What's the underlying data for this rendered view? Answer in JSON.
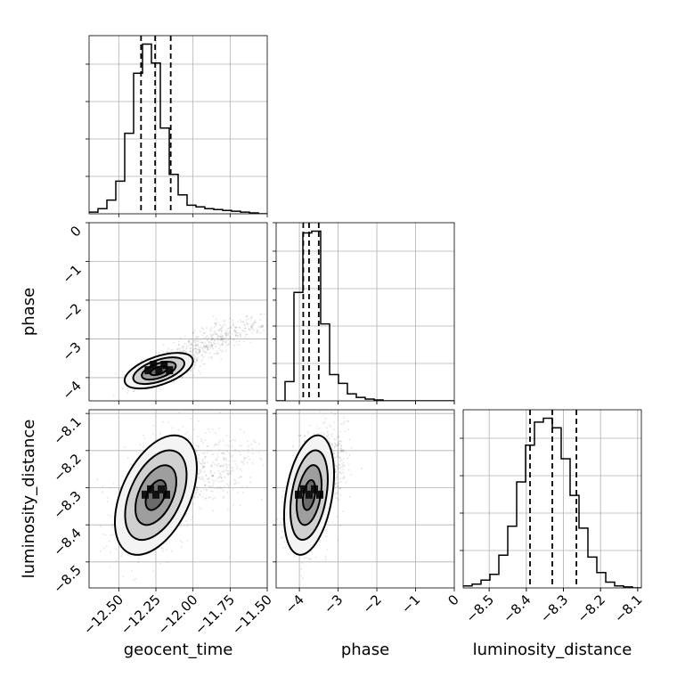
{
  "chart_data": {
    "type": "corner",
    "parameters": [
      {
        "name": "geocent_time",
        "label": "geocent_time",
        "range": [
          -12.7,
          -11.5
        ],
        "ticks": [
          -12.5,
          -12.25,
          -12.0,
          -11.75,
          -11.5
        ],
        "tick_labels": [
          "−12.50",
          "−12.25",
          "−12.00",
          "−11.75",
          "−11.50"
        ]
      },
      {
        "name": "phase",
        "label": "phase",
        "range": [
          -4.6,
          0.0
        ],
        "ticks": [
          -4,
          -3,
          -2,
          -1,
          0
        ],
        "tick_labels": [
          "−4",
          "−3",
          "−2",
          "−1",
          "0"
        ]
      },
      {
        "name": "luminosity_distance",
        "label": "luminosity_distance",
        "range": [
          -8.57,
          -8.09
        ],
        "ticks": [
          -8.5,
          -8.4,
          -8.3,
          -8.2,
          -8.1
        ],
        "tick_labels": [
          "−8.5",
          "−8.4",
          "−8.3",
          "−8.2",
          "−8.1"
        ]
      }
    ],
    "histograms": [
      {
        "param": "geocent_time",
        "bin_start": -12.7,
        "bin_width": 0.06,
        "counts": [
          0.01,
          0.03,
          0.08,
          0.19,
          0.47,
          0.82,
          0.99,
          0.88,
          0.5,
          0.23,
          0.11,
          0.05,
          0.04,
          0.03,
          0.025,
          0.02,
          0.015,
          0.01,
          0.005,
          0.0
        ],
        "quantiles": [
          -12.35,
          -12.255,
          -12.15
        ]
      },
      {
        "param": "phase",
        "bin_start": -4.6,
        "bin_width": 0.23,
        "counts": [
          0.0,
          0.11,
          0.62,
          0.96,
          0.97,
          0.44,
          0.15,
          0.1,
          0.04,
          0.02,
          0.01,
          0.005,
          0.0,
          0.0,
          0.0,
          0.0,
          0.0,
          0.0,
          0.0,
          0.0
        ],
        "quantiles": [
          -3.9,
          -3.75,
          -3.5
        ]
      },
      {
        "param": "luminosity_distance",
        "bin_start": -8.57,
        "bin_width": 0.024,
        "counts": [
          0.01,
          0.02,
          0.04,
          0.07,
          0.17,
          0.32,
          0.55,
          0.74,
          0.86,
          0.88,
          0.83,
          0.67,
          0.48,
          0.31,
          0.16,
          0.08,
          0.03,
          0.01,
          0.005,
          0.0
        ],
        "quantiles": [
          -8.39,
          -8.33,
          -8.265
        ]
      }
    ],
    "pairs": [
      {
        "x": "geocent_time",
        "y": "phase",
        "center": [
          -12.23,
          -3.82
        ],
        "spread": [
          0.1,
          0.2
        ],
        "correlation": 0.55,
        "tail_toward": [
          -11.6,
          -2.5
        ]
      },
      {
        "x": "geocent_time",
        "y": "luminosity_distance",
        "center": [
          -12.25,
          -8.32
        ],
        "spread": [
          0.12,
          0.07
        ],
        "correlation": 0.45,
        "tail_toward": [
          -11.7,
          -8.22
        ]
      },
      {
        "x": "phase",
        "y": "luminosity_distance",
        "center": [
          -3.75,
          -8.32
        ],
        "spread": [
          0.28,
          0.07
        ],
        "correlation": 0.35,
        "tail_toward": [
          -3.0,
          -8.2
        ]
      }
    ],
    "contour_levels_sigma": [
      0.5,
      1.0,
      1.5,
      2.0
    ],
    "grid": true
  }
}
